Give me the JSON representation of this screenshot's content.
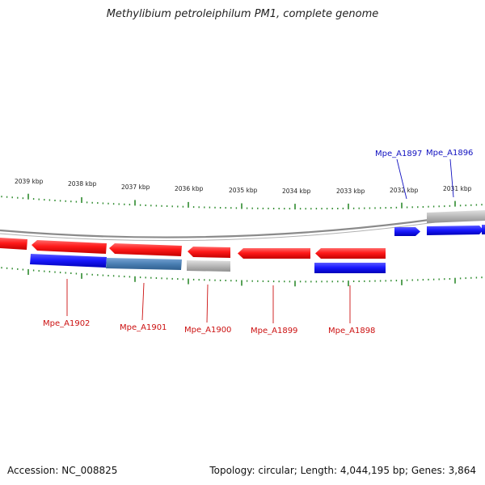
{
  "title": "Methylibium petroleiphilum PM1, complete genome",
  "footer": {
    "accession": "Accession: NC_008825",
    "info": "Topology: circular; Length: 4,044,195 bp; Genes: 3,864"
  },
  "colors": {
    "forward_gene": "#1a1aff",
    "reverse_gene": "#ff1a1a",
    "other_gene": "#b3b3b3",
    "teal_gene": "#4a7fb3",
    "tick": "#2e8b2e",
    "backbone": "#8a8a8a",
    "forward_label": "#1010c0",
    "reverse_label": "#cc1010"
  },
  "ticks": [
    "2039 kbp",
    "2038 kbp",
    "2037 kbp",
    "2036 kbp",
    "2035 kbp",
    "2034 kbp",
    "2033 kbp",
    "2032 kbp",
    "2031 kbp"
  ],
  "gene_labels": {
    "forward": [
      "Mpe_A1897",
      "Mpe_A1896"
    ],
    "reverse": [
      "Mpe_A1902",
      "Mpe_A1901",
      "Mpe_A1900",
      "Mpe_A1899",
      "Mpe_A1898"
    ]
  }
}
